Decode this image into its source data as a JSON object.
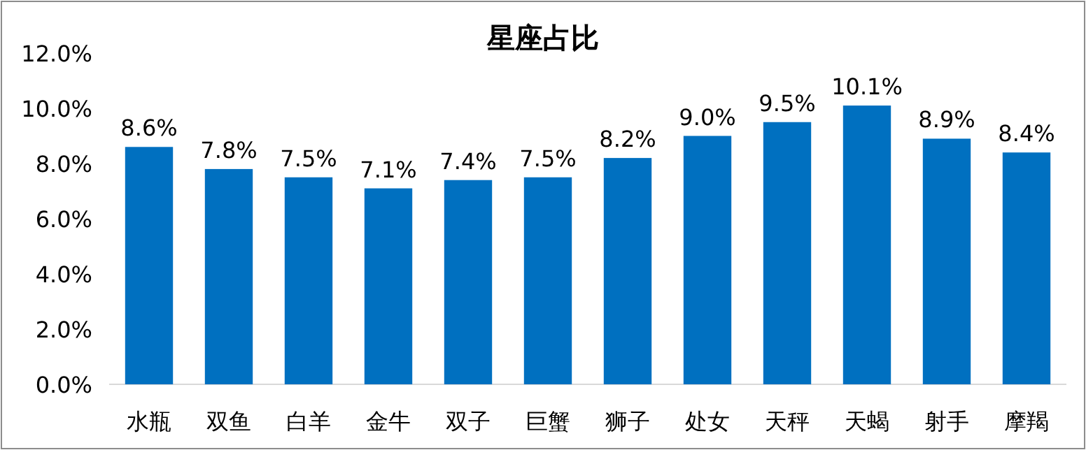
{
  "chart_data": {
    "type": "bar",
    "title": "星座占比",
    "categories": [
      "水瓶",
      "双鱼",
      "白羊",
      "金牛",
      "双子",
      "巨蟹",
      "狮子",
      "处女",
      "天秤",
      "天蝎",
      "射手",
      "摩羯"
    ],
    "values": [
      8.6,
      7.8,
      7.5,
      7.1,
      7.4,
      7.5,
      8.2,
      9.0,
      9.5,
      10.1,
      8.9,
      8.4
    ],
    "value_labels": [
      "8.6%",
      "7.8%",
      "7.5%",
      "7.1%",
      "7.4%",
      "7.5%",
      "8.2%",
      "9.0%",
      "9.5%",
      "10.1%",
      "8.9%",
      "8.4%"
    ],
    "color": "#0070c0",
    "ylim": [
      0,
      12
    ],
    "yticks": [
      {
        "value": 0,
        "label": "0.0%"
      },
      {
        "value": 2,
        "label": "2.0%"
      },
      {
        "value": 4,
        "label": "4.0%"
      },
      {
        "value": 6,
        "label": "6.0%"
      },
      {
        "value": 8,
        "label": "8.0%"
      },
      {
        "value": 10,
        "label": "10.0%"
      },
      {
        "value": 12,
        "label": "12.0%"
      }
    ],
    "grid": false
  }
}
